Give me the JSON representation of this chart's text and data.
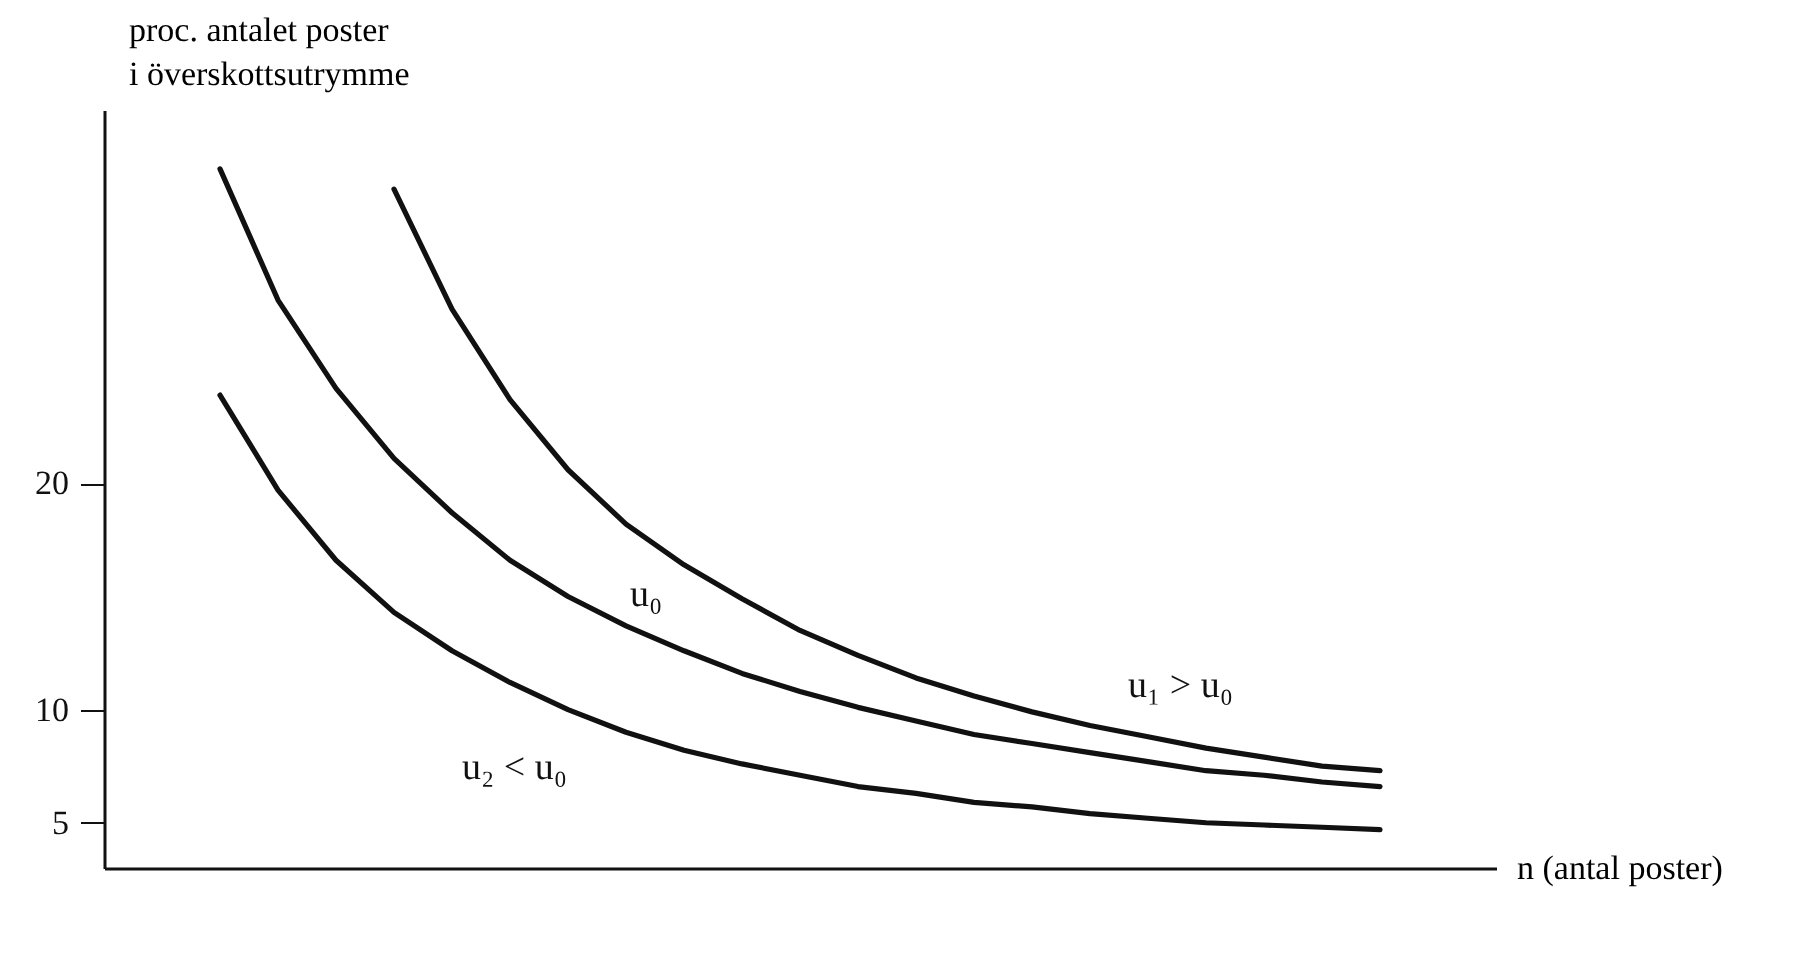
{
  "chart_data": {
    "type": "line",
    "xlabel": "n (antal poster)",
    "ylabel": "proc. antalet poster\ni överskottsutrymme",
    "categories": [
      null,
      null,
      null,
      null,
      null,
      null,
      null,
      null,
      null,
      null,
      null,
      null,
      null,
      null,
      null,
      null,
      null,
      null,
      null,
      null,
      null,
      null,
      null,
      null,
      null
    ],
    "series": [
      {
        "name": "u₁ > u₀",
        "color": "#111111",
        "values": [
          null,
          null,
          null,
          null,
          null,
          33.0,
          27.7,
          23.7,
          20.6,
          18.2,
          16.4,
          14.9,
          13.5,
          12.4,
          11.4,
          10.6,
          9.9,
          9.3,
          8.8,
          8.3,
          7.9,
          7.5,
          7.3,
          null,
          null
        ]
      },
      {
        "name": "u₀",
        "color": "#111111",
        "values": [
          null,
          null,
          33.9,
          28.1,
          24.2,
          21.1,
          18.7,
          16.6,
          15.0,
          13.7,
          12.6,
          11.6,
          10.8,
          10.1,
          9.5,
          8.9,
          8.5,
          8.1,
          7.7,
          7.3,
          7.1,
          6.8,
          6.6,
          null,
          null
        ]
      },
      {
        "name": "u₂ < u₀",
        "color": "#111111",
        "values": [
          null,
          null,
          23.9,
          19.7,
          16.6,
          14.3,
          12.6,
          11.2,
          10.0,
          9.0,
          8.2,
          7.6,
          7.1,
          6.6,
          6.3,
          5.9,
          5.7,
          5.4,
          5.2,
          5.0,
          4.9,
          4.8,
          4.7,
          null,
          null
        ]
      }
    ],
    "ylim": [
      3,
      36.5
    ],
    "yticks": [
      5,
      10,
      20
    ],
    "tick_labels": "y",
    "grid": false,
    "marker": "none",
    "line_style": "solid"
  }
}
